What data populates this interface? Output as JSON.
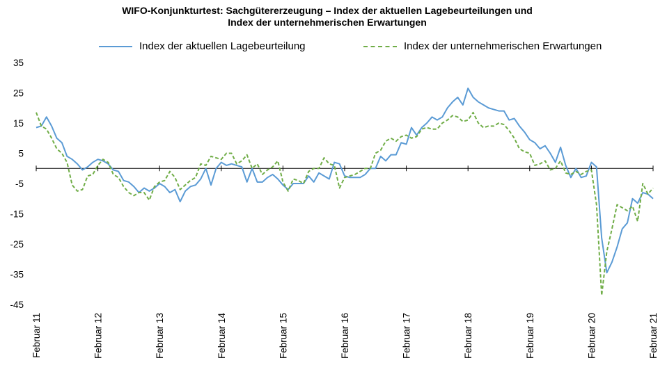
{
  "chart_data": {
    "type": "line",
    "title": [
      "WIFO-Konjunkturtest: Sachgütererzeugung – Index der aktuellen Lagebeurteilungen und",
      "Index der unternehmerischen Erwartungen"
    ],
    "xlabel": "",
    "ylabel": "",
    "ylim": [
      -45,
      35
    ],
    "y_ticks": [
      35,
      25,
      15,
      5,
      -5,
      -15,
      -25,
      -35,
      -45
    ],
    "x_tick_labels": [
      "Februar 11",
      "Februar 12",
      "Februar 13",
      "Februar 14",
      "Februar 15",
      "Februar 16",
      "Februar 17",
      "Februar 18",
      "Februar 19",
      "Februar 20",
      "Februar 21"
    ],
    "x_range": [
      "2011-02",
      "2021-02"
    ],
    "grid": false,
    "legend_position": "top",
    "series": [
      {
        "name": "Index der aktuellen Lagebeurteilung",
        "color": "#5b9bd5",
        "style": "solid",
        "values": [
          13.5,
          14,
          17,
          14,
          10,
          8.5,
          4,
          3,
          1.5,
          -0.5,
          0.5,
          2,
          3,
          2.5,
          1.5,
          -0.5,
          -1,
          -4,
          -4.5,
          -6,
          -8,
          -6.5,
          -7.5,
          -6.5,
          -5,
          -6,
          -8,
          -7,
          -11,
          -7.5,
          -6,
          -5.5,
          -3.5,
          0,
          -5.5,
          0,
          2,
          1,
          1.5,
          1,
          0.5,
          -4.5,
          0,
          -4.5,
          -4.5,
          -3,
          -2,
          -3.5,
          -5.5,
          -7,
          -5,
          -5,
          -5,
          -2.5,
          -4.5,
          -1.5,
          -2.5,
          -3.5,
          2,
          1.5,
          -2.5,
          -3,
          -3,
          -3,
          -2,
          0,
          0,
          4,
          2.5,
          4.5,
          4.5,
          8.5,
          8,
          13.5,
          11,
          13.5,
          15,
          17,
          16,
          17,
          20,
          22,
          23.5,
          21,
          26.5,
          23.5,
          22,
          21,
          20,
          19.5,
          19,
          19,
          16,
          16.5,
          14,
          12,
          9.5,
          8.5,
          6.5,
          7.5,
          5,
          2,
          7,
          1,
          -3,
          0,
          -3,
          -2.5,
          2,
          0.5,
          -23,
          -34.5,
          -31,
          -26,
          -20,
          -18,
          -10,
          -11.5,
          -8,
          -8.5,
          -10
        ]
      },
      {
        "name": "Index der unternehmerischen Erwartungen",
        "color": "#70ad47",
        "style": "dashed",
        "values": [
          18.5,
          14,
          13,
          10,
          6.5,
          5,
          2,
          -5.5,
          -7.5,
          -7,
          -2.5,
          -2,
          1,
          3,
          2,
          -2,
          -3,
          -6,
          -8,
          -9,
          -8,
          -8,
          -10.5,
          -6,
          -4.5,
          -4,
          -1,
          -3,
          -7,
          -5.5,
          -4,
          -3,
          1.5,
          1,
          4,
          3.5,
          3,
          5,
          5,
          1.5,
          2.5,
          4.5,
          0,
          1.5,
          -2,
          -0.5,
          0.5,
          2.5,
          -4.5,
          -7.5,
          -3.5,
          -4,
          -5,
          -1,
          0,
          0,
          3.5,
          1.5,
          1,
          -6.5,
          -3,
          -2.5,
          -2,
          -1,
          0,
          0,
          5,
          6,
          9,
          10,
          9,
          10.5,
          11,
          10,
          10.5,
          13,
          13.5,
          13,
          13,
          15,
          16,
          17.5,
          17,
          15.5,
          16,
          18.5,
          15,
          13.5,
          14,
          14,
          15,
          14.5,
          12.5,
          10,
          6.5,
          5.5,
          5,
          1,
          1.5,
          2.5,
          -0.5,
          0,
          2.5,
          -1.5,
          -2,
          -1,
          -2,
          -1,
          -0.5,
          -12,
          -42,
          -27.5,
          -20,
          -12,
          -13,
          -14,
          -12.5,
          -17.5,
          -5,
          -8.5,
          -6.5
        ]
      }
    ]
  }
}
